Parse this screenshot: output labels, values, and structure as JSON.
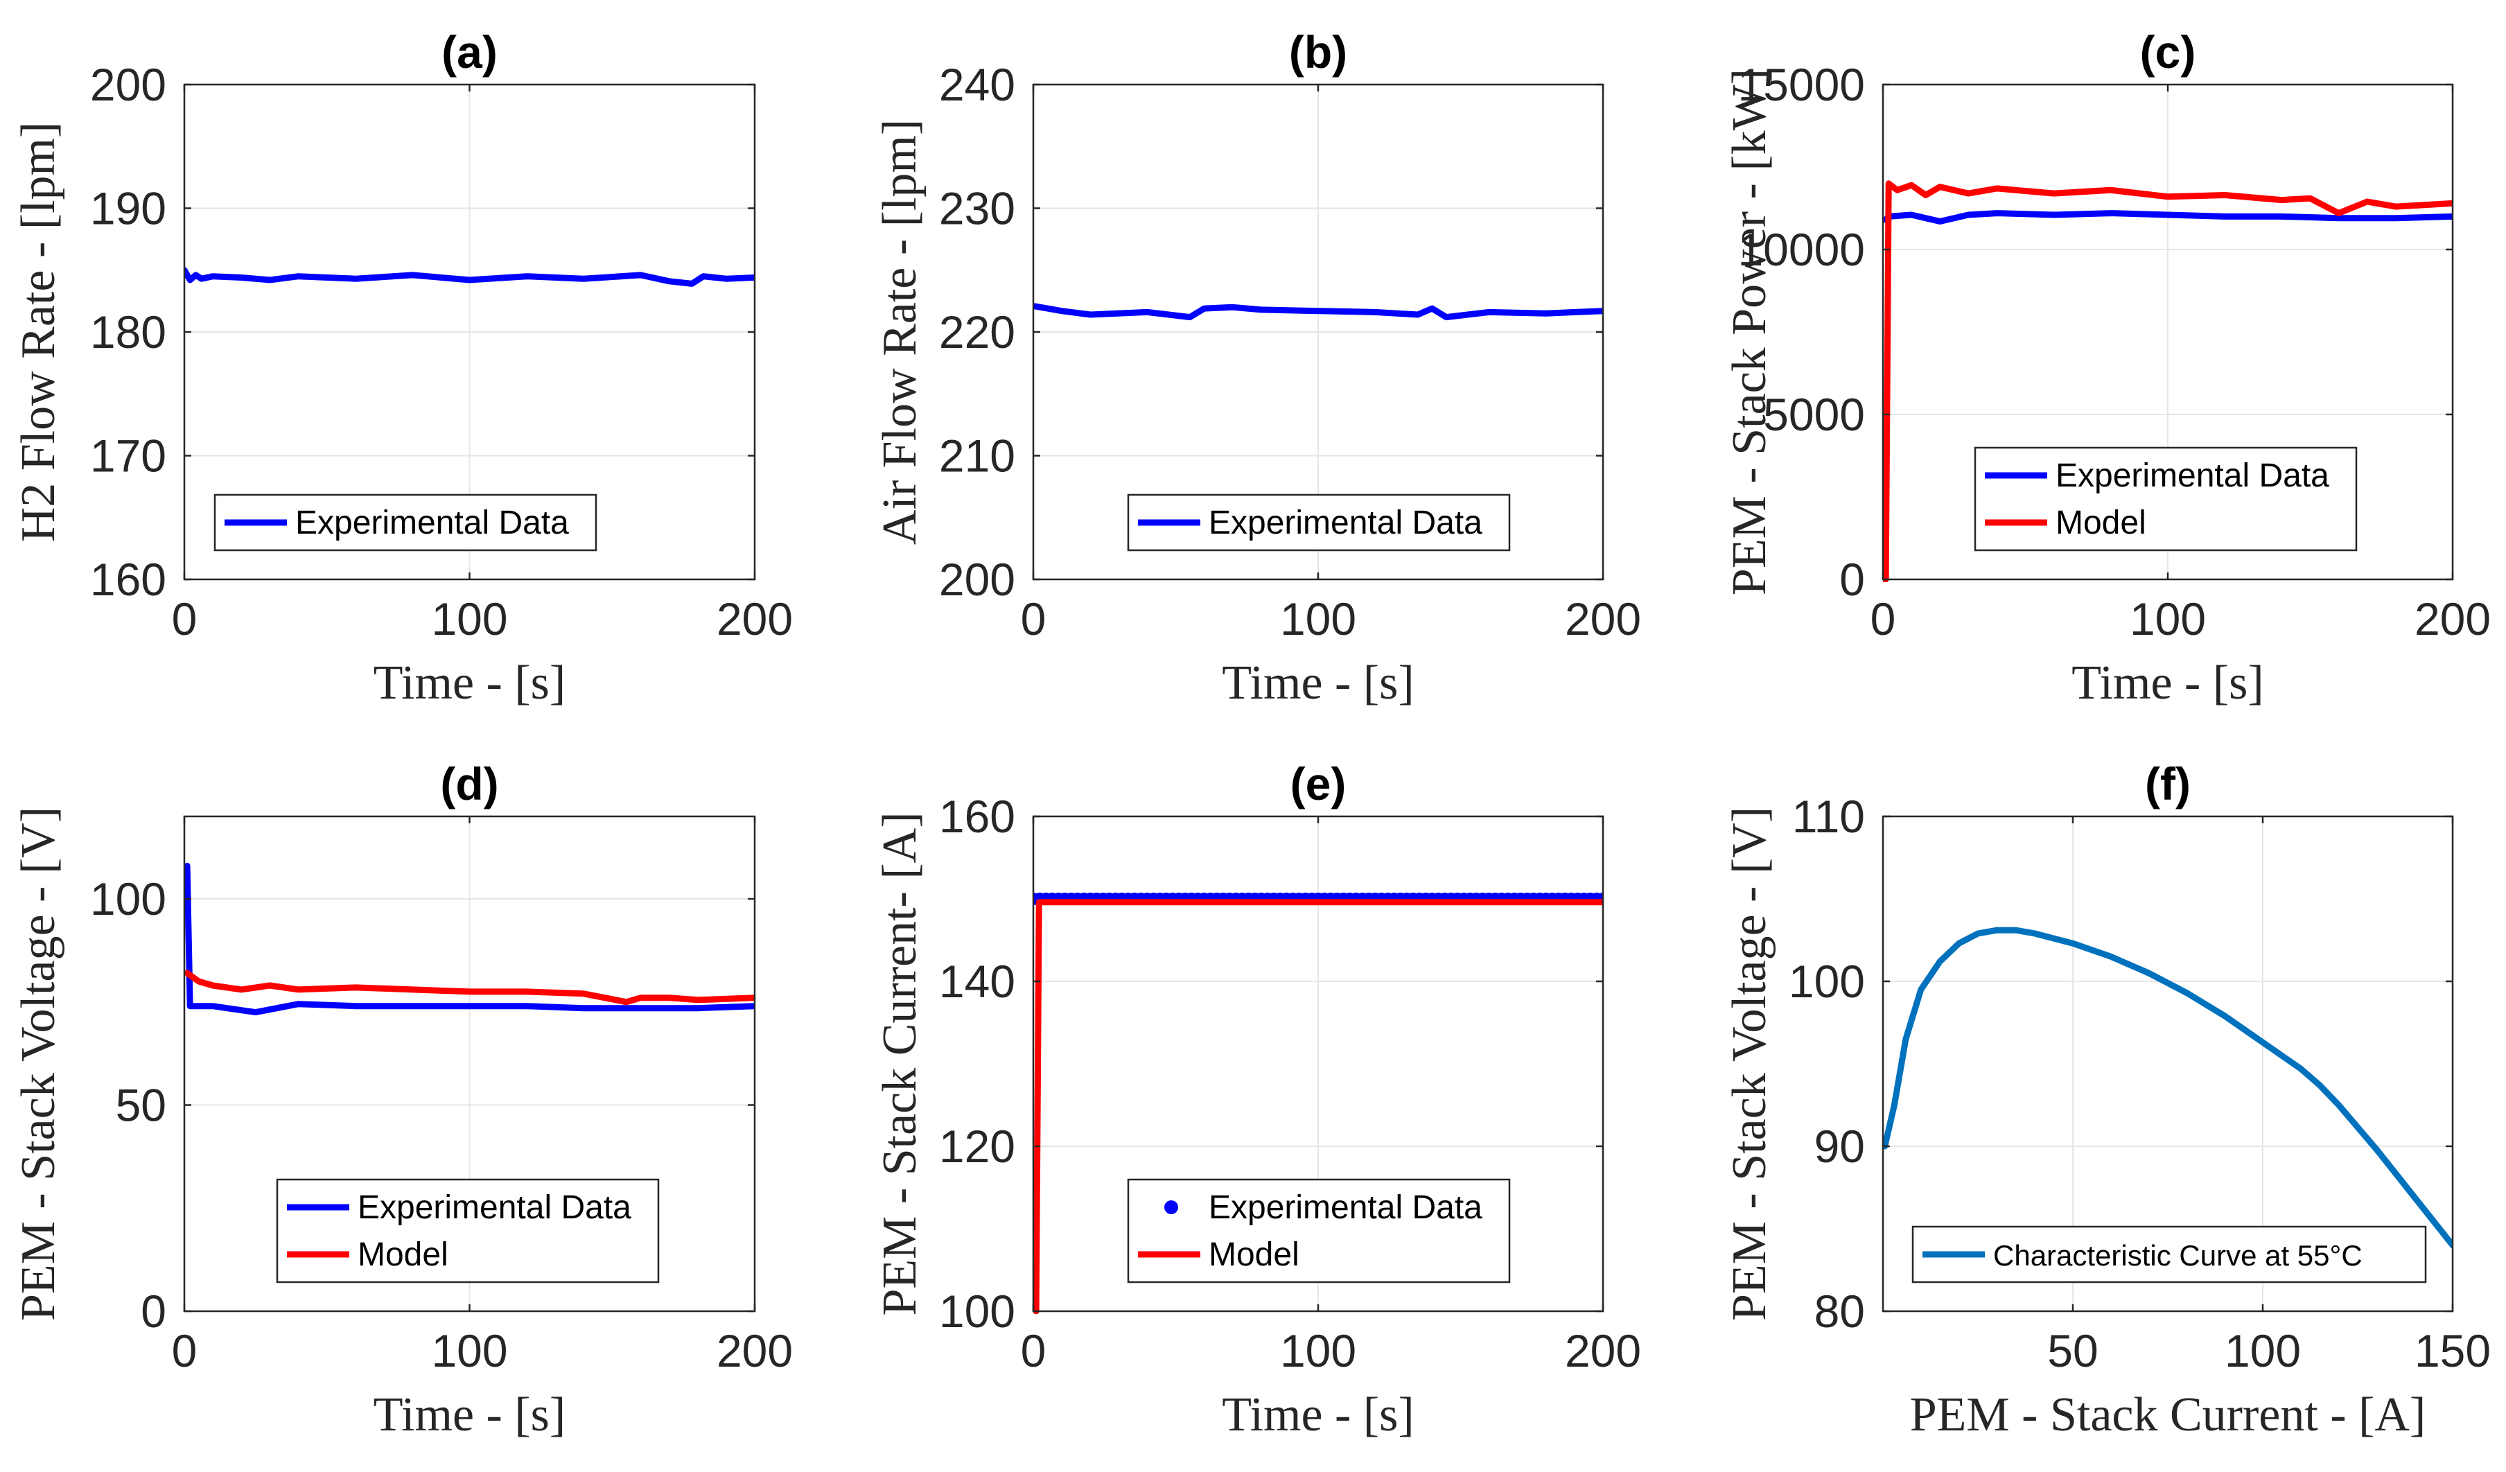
{
  "colors": {
    "experimental": "#0000ff",
    "model": "#ff0000",
    "curve": "#0072bd",
    "grid": "#e6e6e6",
    "axis": "#262626"
  },
  "chart_data": [
    {
      "id": "a",
      "type": "line",
      "title": "(a)",
      "xlabel": "Time - [s]",
      "ylabel": "H2 Flow Rate - [lpm]",
      "xlim": [
        0,
        200
      ],
      "ylim": [
        160,
        200
      ],
      "xticks": [
        0,
        100,
        200
      ],
      "yticks": [
        160,
        170,
        180,
        190,
        200
      ],
      "legend": "bottom-left",
      "grid": true,
      "series": [
        {
          "name": "Experimental Data",
          "color": "#0000ff",
          "style": "line",
          "x": [
            0,
            2,
            4,
            6,
            10,
            20,
            30,
            40,
            60,
            80,
            100,
            120,
            140,
            160,
            170,
            178,
            182,
            190,
            200
          ],
          "y": [
            185,
            184.2,
            184.6,
            184.3,
            184.5,
            184.4,
            184.2,
            184.5,
            184.3,
            184.6,
            184.2,
            184.5,
            184.3,
            184.6,
            184.1,
            183.9,
            184.5,
            184.3,
            184.4
          ]
        }
      ]
    },
    {
      "id": "b",
      "type": "line",
      "title": "(b)",
      "xlabel": "Time - [s]",
      "ylabel": "Air Flow Rate - [lpm]",
      "xlim": [
        0,
        200
      ],
      "ylim": [
        200,
        240
      ],
      "xticks": [
        0,
        100,
        200
      ],
      "yticks": [
        200,
        210,
        220,
        230,
        240
      ],
      "legend": "bottom-left",
      "grid": true,
      "series": [
        {
          "name": "Experimental Data",
          "color": "#0000ff",
          "style": "line",
          "x": [
            0,
            5,
            10,
            20,
            40,
            55,
            60,
            70,
            80,
            100,
            120,
            135,
            140,
            145,
            160,
            180,
            200
          ],
          "y": [
            222.1,
            221.9,
            221.7,
            221.4,
            221.6,
            221.2,
            221.9,
            222.0,
            221.8,
            221.7,
            221.6,
            221.4,
            221.9,
            221.2,
            221.6,
            221.5,
            221.7
          ]
        }
      ]
    },
    {
      "id": "c",
      "type": "line",
      "title": "(c)",
      "xlabel": "Time - [s]",
      "ylabel": "PEM - Stack Power - [kW]",
      "xlim": [
        0,
        200
      ],
      "ylim": [
        0,
        15000
      ],
      "xticks": [
        0,
        100,
        200
      ],
      "yticks": [
        0,
        5000,
        10000,
        15000
      ],
      "legend": "bottom-right",
      "grid": true,
      "series": [
        {
          "name": "Experimental Data",
          "color": "#0000ff",
          "style": "line",
          "x": [
            1,
            2,
            10,
            20,
            30,
            40,
            60,
            80,
            100,
            120,
            140,
            160,
            180,
            200
          ],
          "y": [
            10900,
            11000,
            11050,
            10850,
            11050,
            11100,
            11050,
            11100,
            11050,
            11000,
            11000,
            10950,
            10950,
            11000
          ]
        },
        {
          "name": "Model",
          "color": "#ff0000",
          "style": "line",
          "x": [
            0,
            1,
            2,
            5,
            10,
            15,
            20,
            30,
            40,
            60,
            80,
            100,
            120,
            140,
            150,
            160,
            170,
            180,
            190,
            200
          ],
          "y": [
            0,
            0,
            12000,
            11800,
            11950,
            11650,
            11900,
            11700,
            11850,
            11700,
            11800,
            11600,
            11650,
            11500,
            11550,
            11100,
            11450,
            11300,
            11350,
            11400
          ]
        }
      ]
    },
    {
      "id": "d",
      "type": "line",
      "title": "(d)",
      "xlabel": "Time - [s]",
      "ylabel": "PEM - Stack Voltage - [V]",
      "xlim": [
        0,
        200
      ],
      "ylim": [
        0,
        120
      ],
      "xticks": [
        0,
        100,
        200
      ],
      "yticks": [
        0,
        50,
        100
      ],
      "legend": "bottom-right",
      "grid": true,
      "series": [
        {
          "name": "Experimental Data",
          "color": "#0000ff",
          "style": "line",
          "x": [
            1,
            2,
            5,
            10,
            20,
            25,
            40,
            60,
            80,
            100,
            120,
            140,
            160,
            180,
            200
          ],
          "y": [
            108,
            74,
            74,
            74,
            73,
            72.5,
            74.5,
            74,
            74,
            74,
            74,
            73.5,
            73.5,
            73.5,
            74
          ]
        },
        {
          "name": "Model",
          "color": "#ff0000",
          "style": "line",
          "x": [
            1,
            5,
            10,
            20,
            30,
            40,
            60,
            80,
            100,
            120,
            140,
            155,
            160,
            170,
            180,
            200
          ],
          "y": [
            82,
            80,
            79,
            78,
            79,
            78,
            78.5,
            78,
            77.5,
            77.5,
            77,
            75,
            76,
            76,
            75.5,
            76
          ]
        }
      ]
    },
    {
      "id": "e",
      "type": "line",
      "title": "(e)",
      "xlabel": "Time - [s]",
      "ylabel": "PEM - Stack Current- [A]",
      "xlim": [
        0,
        200
      ],
      "ylim": [
        100,
        160
      ],
      "xticks": [
        0,
        100,
        200
      ],
      "yticks": [
        100,
        120,
        140,
        160
      ],
      "legend": "bottom-right",
      "grid": true,
      "series": [
        {
          "name": "Experimental Data",
          "color": "#0000ff",
          "style": "markers",
          "x": [
            0,
            200
          ],
          "y": [
            150,
            150
          ]
        },
        {
          "name": "Model",
          "color": "#ff0000",
          "style": "line",
          "x": [
            1,
            2,
            200
          ],
          "y": [
            100,
            149.6,
            149.6
          ]
        }
      ]
    },
    {
      "id": "f",
      "type": "line",
      "title": "(f)",
      "xlabel": "PEM - Stack Current - [A]",
      "ylabel": "PEM - Stack Voltage - [V]",
      "xlim": [
        0,
        150
      ],
      "ylim": [
        80,
        110
      ],
      "xticks": [
        50,
        100,
        150
      ],
      "yticks": [
        80,
        90,
        100,
        110
      ],
      "legend": "bottom-left",
      "grid": true,
      "series": [
        {
          "name": "Characteristic Curve at 55°C",
          "color": "#0072bd",
          "style": "line",
          "x": [
            0.5,
            3,
            6,
            10,
            15,
            20,
            25,
            30,
            35,
            40,
            50,
            60,
            70,
            80,
            90,
            100,
            110,
            115,
            120,
            130,
            140,
            150
          ],
          "y": [
            90,
            92.5,
            96.5,
            99.5,
            101.2,
            102.3,
            102.9,
            103.1,
            103.1,
            102.9,
            102.3,
            101.5,
            100.5,
            99.3,
            97.9,
            96.3,
            94.7,
            93.7,
            92.5,
            89.8,
            86.9,
            84
          ]
        }
      ]
    }
  ]
}
